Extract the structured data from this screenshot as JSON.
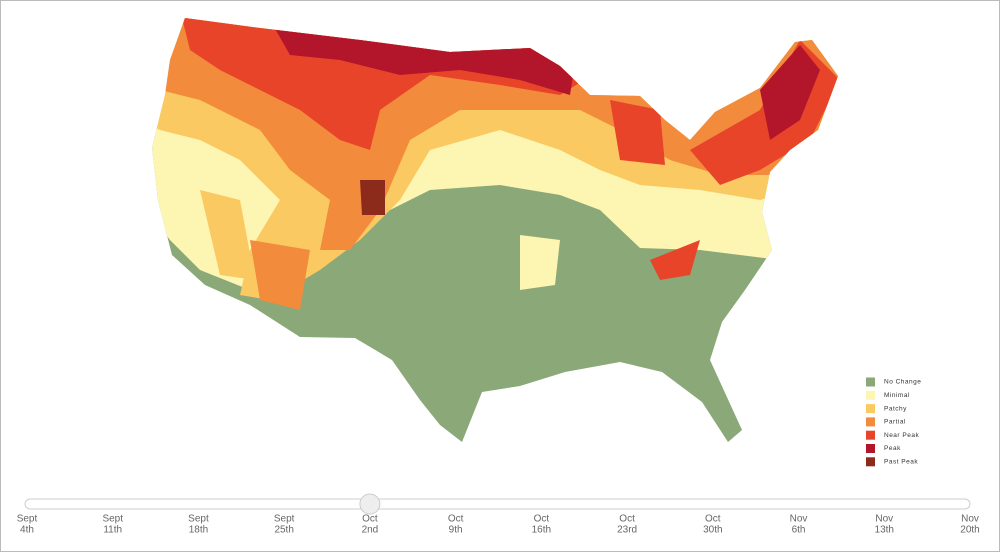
{
  "legend": {
    "items": [
      {
        "label": "No Change",
        "color": "#8aa878"
      },
      {
        "label": "Minimal",
        "color": "#fdf5b2"
      },
      {
        "label": "Patchy",
        "color": "#fbc962"
      },
      {
        "label": "Partial",
        "color": "#f38b3c"
      },
      {
        "label": "Near Peak",
        "color": "#e8442a"
      },
      {
        "label": "Peak",
        "color": "#b3152a"
      },
      {
        "label": "Past Peak",
        "color": "#8c2a1c"
      }
    ]
  },
  "slider": {
    "selected_index": 4,
    "dates": [
      {
        "month": "Sept",
        "day": "4th"
      },
      {
        "month": "Sept",
        "day": "11th"
      },
      {
        "month": "Sept",
        "day": "18th"
      },
      {
        "month": "Sept",
        "day": "25th"
      },
      {
        "month": "Oct",
        "day": "2nd"
      },
      {
        "month": "Oct",
        "day": "9th"
      },
      {
        "month": "Oct",
        "day": "16th"
      },
      {
        "month": "Oct",
        "day": "23rd"
      },
      {
        "month": "Oct",
        "day": "30th"
      },
      {
        "month": "Nov",
        "day": "6th"
      },
      {
        "month": "Nov",
        "day": "13th"
      },
      {
        "month": "Nov",
        "day": "20th"
      }
    ]
  }
}
